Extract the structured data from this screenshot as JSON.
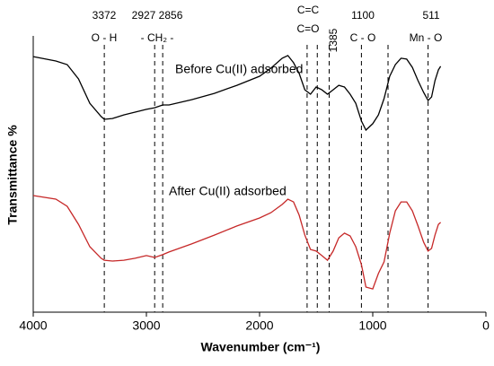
{
  "chart_data": {
    "type": "line",
    "xlabel": "Wavenumber (cm⁻¹)",
    "ylabel": "Transmittance %",
    "x": [
      4000,
      3800,
      3700,
      3600,
      3500,
      3400,
      3372,
      3300,
      3200,
      3100,
      3000,
      2927,
      2856,
      2800,
      2600,
      2400,
      2200,
      2000,
      1900,
      1800,
      1750,
      1700,
      1650,
      1600,
      1550,
      1500,
      1450,
      1400,
      1350,
      1300,
      1250,
      1200,
      1150,
      1100,
      1060,
      1000,
      950,
      900,
      850,
      800,
      750,
      700,
      650,
      600,
      550,
      511,
      480,
      450,
      420,
      400
    ],
    "series": [
      {
        "name": "Before Cu(II) adsorbed",
        "color": "#000000",
        "values": [
          92.5,
          90.9,
          89.6,
          84.4,
          75.6,
          70.8,
          69.8,
          70.1,
          71.4,
          72.4,
          73.4,
          74.0,
          75.0,
          75.0,
          76.9,
          79.2,
          82.1,
          85.4,
          88.3,
          91.9,
          92.9,
          90.3,
          86.4,
          80.5,
          78.9,
          81.5,
          80.5,
          78.9,
          80.5,
          82.1,
          81.5,
          78.9,
          75.6,
          69.2,
          65.9,
          68.2,
          71.4,
          77.3,
          85.4,
          89.6,
          91.9,
          91.6,
          88.6,
          83.8,
          79.5,
          76.6,
          77.9,
          83.8,
          87.7,
          89.0
        ]
      },
      {
        "name": "After Cu(II) adsorbed",
        "color": "#c62828",
        "values": [
          42.2,
          40.9,
          38.3,
          31.8,
          23.7,
          19.5,
          18.8,
          18.5,
          18.8,
          19.5,
          20.5,
          19.8,
          20.8,
          21.8,
          24.7,
          27.9,
          31.2,
          34.1,
          36.0,
          39.0,
          40.9,
          39.9,
          35.1,
          27.9,
          22.7,
          22.1,
          20.5,
          18.8,
          22.1,
          26.9,
          28.6,
          27.6,
          23.7,
          17.2,
          9.1,
          8.4,
          14.0,
          18.2,
          28.6,
          36.7,
          39.9,
          39.9,
          36.7,
          31.2,
          25.3,
          22.1,
          23.1,
          27.9,
          31.8,
          32.5
        ]
      }
    ],
    "xlim": [
      4000,
      0
    ],
    "xticks": [
      4000,
      3000,
      2000,
      1000,
      0
    ],
    "ylim": [
      0,
      100
    ],
    "reference_lines": [
      3372,
      2927,
      2856,
      1580,
      1490,
      1385,
      1100,
      865,
      511
    ],
    "annotations": [
      "3372",
      "O - H",
      "2927 2856",
      "- CH₂ -",
      "C=C",
      "C=O",
      "1385",
      "1100",
      "C - O",
      "511",
      "Mn - O"
    ]
  }
}
